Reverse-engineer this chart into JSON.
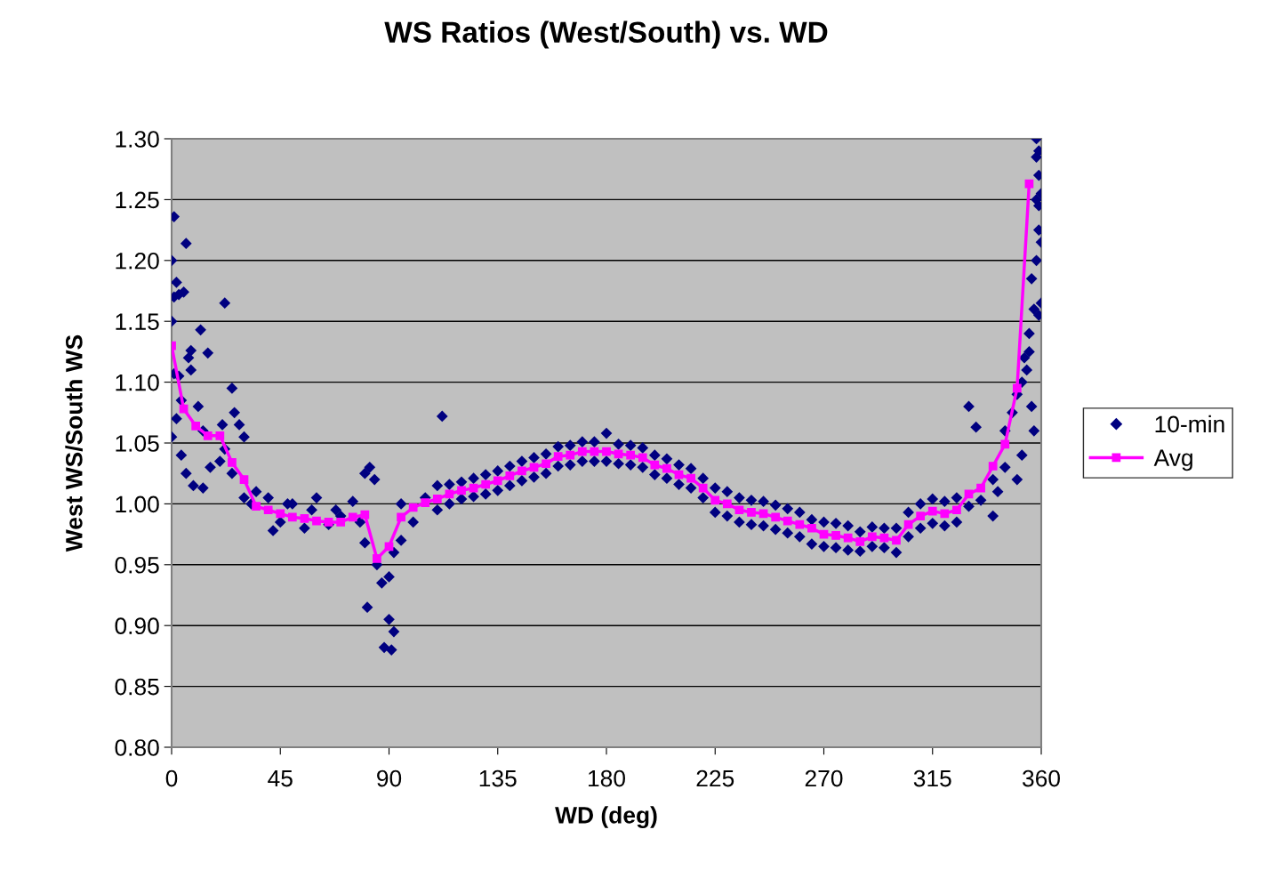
{
  "chart_data": {
    "type": "scatter",
    "title": "WS Ratios (West/South) vs. WD",
    "xlabel": "WD (deg)",
    "ylabel": "West WS/South WS",
    "xlim": [
      0,
      360
    ],
    "xticks": [
      0,
      45,
      90,
      135,
      180,
      225,
      270,
      315,
      360
    ],
    "ylim": [
      0.8,
      1.3
    ],
    "yticks": [
      {
        "value": 0.8,
        "label": "0.80"
      },
      {
        "value": 0.85,
        "label": "0.85"
      },
      {
        "value": 0.9,
        "label": "0.90"
      },
      {
        "value": 0.95,
        "label": "0.95"
      },
      {
        "value": 1.0,
        "label": "1.00"
      },
      {
        "value": 1.05,
        "label": "1.05"
      },
      {
        "value": 1.1,
        "label": "1.10"
      },
      {
        "value": 1.15,
        "label": "1.15"
      },
      {
        "value": 1.2,
        "label": "1.20"
      },
      {
        "value": 1.25,
        "label": "1.25"
      },
      {
        "value": 1.3,
        "label": "1.30"
      }
    ],
    "grid": "y",
    "legend": "right",
    "series": [
      {
        "name": "10-min",
        "marker": "diamond",
        "color": "#000080",
        "x": [
          1,
          6,
          0,
          2,
          3,
          1,
          5,
          0,
          12,
          22,
          15,
          8,
          7,
          1,
          3,
          8,
          4,
          11,
          2,
          25,
          13,
          21,
          0,
          4,
          6,
          9,
          13,
          16,
          22,
          26,
          28,
          30,
          25,
          20,
          30,
          33,
          35,
          40,
          42,
          45,
          48,
          50,
          55,
          58,
          60,
          65,
          68,
          70,
          75,
          78,
          80,
          82,
          84,
          80,
          85,
          87,
          81,
          90,
          88,
          91,
          92,
          90,
          92,
          95,
          100,
          95,
          105,
          110,
          110,
          112,
          115,
          115,
          120,
          120,
          125,
          125,
          130,
          130,
          135,
          135,
          140,
          140,
          145,
          145,
          150,
          150,
          155,
          155,
          160,
          160,
          165,
          165,
          170,
          170,
          175,
          175,
          180,
          180,
          185,
          185,
          190,
          190,
          195,
          195,
          200,
          200,
          205,
          205,
          210,
          210,
          215,
          215,
          220,
          220,
          225,
          225,
          230,
          230,
          235,
          235,
          240,
          240,
          245,
          245,
          250,
          250,
          255,
          255,
          260,
          260,
          265,
          265,
          270,
          270,
          275,
          275,
          280,
          280,
          285,
          285,
          290,
          290,
          295,
          295,
          300,
          300,
          305,
          305,
          310,
          310,
          315,
          315,
          320,
          320,
          325,
          325,
          330,
          333,
          330,
          335,
          340,
          340,
          342,
          345,
          345,
          348,
          350,
          350,
          352,
          352,
          353,
          354,
          355,
          355,
          356,
          356,
          357,
          357,
          358,
          358,
          358,
          358,
          359,
          359,
          359,
          359,
          359,
          360,
          360,
          360
        ],
        "values": [
          1.236,
          1.214,
          1.2,
          1.182,
          1.172,
          1.17,
          1.174,
          1.15,
          1.143,
          1.165,
          1.124,
          1.126,
          1.12,
          1.107,
          1.105,
          1.11,
          1.085,
          1.08,
          1.07,
          1.095,
          1.06,
          1.065,
          1.055,
          1.04,
          1.025,
          1.015,
          1.013,
          1.03,
          1.045,
          1.075,
          1.065,
          1.055,
          1.025,
          1.035,
          1.005,
          1.0,
          1.01,
          1.005,
          0.978,
          0.985,
          1.0,
          1.0,
          0.98,
          0.995,
          1.005,
          0.983,
          0.995,
          0.99,
          1.002,
          0.985,
          1.025,
          1.03,
          1.02,
          0.968,
          0.95,
          0.935,
          0.915,
          0.905,
          0.882,
          0.88,
          0.895,
          0.94,
          0.96,
          0.97,
          0.985,
          1.0,
          1.005,
          0.995,
          1.015,
          1.072,
          1.0,
          1.016,
          1.004,
          1.018,
          1.006,
          1.021,
          1.008,
          1.024,
          1.011,
          1.027,
          1.015,
          1.031,
          1.019,
          1.035,
          1.022,
          1.038,
          1.025,
          1.041,
          1.031,
          1.047,
          1.032,
          1.048,
          1.035,
          1.051,
          1.035,
          1.051,
          1.035,
          1.058,
          1.033,
          1.049,
          1.032,
          1.048,
          1.03,
          1.046,
          1.024,
          1.04,
          1.021,
          1.037,
          1.016,
          1.032,
          1.013,
          1.029,
          1.005,
          1.021,
          0.993,
          1.013,
          0.99,
          1.01,
          0.985,
          1.005,
          0.983,
          1.003,
          0.982,
          1.002,
          0.979,
          0.999,
          0.976,
          0.996,
          0.973,
          0.993,
          0.967,
          0.987,
          0.965,
          0.985,
          0.964,
          0.984,
          0.962,
          0.982,
          0.961,
          0.977,
          0.965,
          0.981,
          0.964,
          0.98,
          0.96,
          0.98,
          0.973,
          0.993,
          0.98,
          1.0,
          0.984,
          1.004,
          0.982,
          1.002,
          0.985,
          1.005,
          1.08,
          1.063,
          0.998,
          1.003,
          0.99,
          1.02,
          1.01,
          1.06,
          1.03,
          1.075,
          1.09,
          1.02,
          1.1,
          1.04,
          1.12,
          1.11,
          1.14,
          1.125,
          1.185,
          1.08,
          1.16,
          1.06,
          1.3,
          1.285,
          1.25,
          1.2,
          1.155,
          1.29,
          1.27,
          1.245,
          1.225,
          1.165,
          1.255,
          1.215
        ]
      },
      {
        "name": "Avg",
        "type": "line",
        "marker": "square",
        "line_style": "solid",
        "color": "#ff00ff",
        "x": [
          0,
          5,
          10,
          15,
          20,
          25,
          30,
          35,
          40,
          45,
          50,
          55,
          60,
          65,
          70,
          75,
          80,
          85,
          90,
          95,
          100,
          105,
          110,
          115,
          120,
          125,
          130,
          135,
          140,
          145,
          150,
          155,
          160,
          165,
          170,
          175,
          180,
          185,
          190,
          195,
          200,
          205,
          210,
          215,
          220,
          225,
          230,
          235,
          240,
          245,
          250,
          255,
          260,
          265,
          270,
          275,
          280,
          285,
          290,
          295,
          300,
          305,
          310,
          315,
          320,
          325,
          330,
          335,
          340,
          345,
          350,
          355
        ],
        "values": [
          1.13,
          1.078,
          1.064,
          1.056,
          1.056,
          1.034,
          1.02,
          0.998,
          0.995,
          0.992,
          0.989,
          0.988,
          0.986,
          0.985,
          0.985,
          0.989,
          0.991,
          0.955,
          0.965,
          0.989,
          0.997,
          1.001,
          1.004,
          1.008,
          1.011,
          1.013,
          1.016,
          1.019,
          1.023,
          1.027,
          1.03,
          1.033,
          1.039,
          1.04,
          1.043,
          1.043,
          1.043,
          1.041,
          1.04,
          1.038,
          1.032,
          1.029,
          1.024,
          1.021,
          1.013,
          1.003,
          1.0,
          0.995,
          0.993,
          0.992,
          0.989,
          0.986,
          0.983,
          0.98,
          0.975,
          0.974,
          0.972,
          0.969,
          0.973,
          0.972,
          0.97,
          0.983,
          0.99,
          0.994,
          0.992,
          0.995,
          1.008,
          1.013,
          1.031,
          1.049,
          1.095,
          1.263
        ]
      }
    ]
  }
}
